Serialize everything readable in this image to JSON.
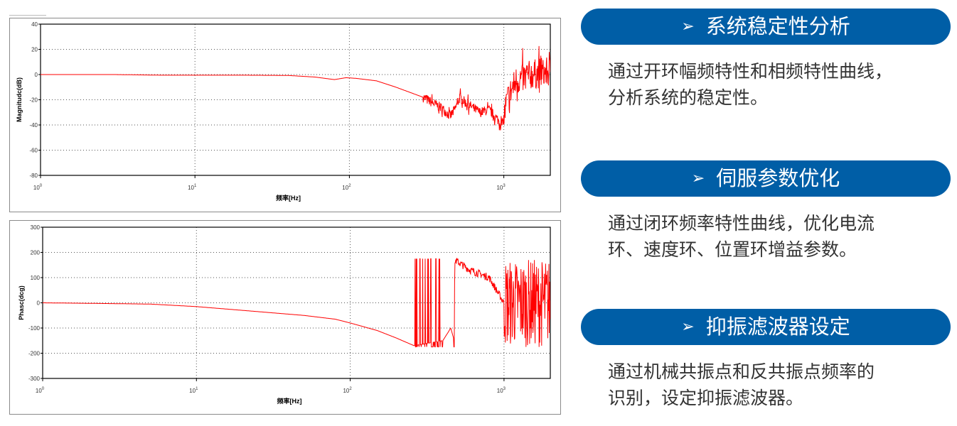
{
  "chart_data": [
    {
      "type": "line",
      "xlabel": "频率[Hz]",
      "ylabel": "Magnitudc(dB)",
      "xscale": "log",
      "xlim": [
        1,
        2000
      ],
      "ylim": [
        -80,
        40
      ],
      "xticks": [
        1,
        10,
        100,
        1000
      ],
      "xtick_labels": [
        {
          "base": "10",
          "exp": "0"
        },
        {
          "base": "10",
          "exp": "1"
        },
        {
          "base": "10",
          "exp": "2"
        },
        {
          "base": "10",
          "exp": "3"
        }
      ],
      "yticks": [
        "40",
        "20",
        "0",
        "-20",
        "-40",
        "-60",
        "-80"
      ],
      "grid": true,
      "color": "#ff0000",
      "x": [
        1,
        3,
        6,
        10,
        20,
        40,
        60,
        80,
        95,
        110,
        150,
        200,
        300,
        400,
        450,
        480,
        520,
        560,
        700,
        800,
        900,
        980,
        1050,
        1200,
        1500,
        2000
      ],
      "y": [
        0,
        0,
        -0.5,
        -0.5,
        -0.5,
        -0.7,
        -2,
        -4,
        -2.5,
        -3,
        -5,
        -10,
        -18,
        -27,
        -33,
        -28,
        -18,
        -22,
        -30,
        -28,
        -35,
        -40,
        -20,
        -5,
        0,
        2
      ],
      "noise_bands": [
        {
          "x_range": [
            300,
            1000
          ],
          "amplitude": 4
        },
        {
          "x_range": [
            1000,
            2000
          ],
          "amplitude": 12
        }
      ]
    },
    {
      "type": "line",
      "xlabel": "频率[Hz]",
      "ylabel": "Phasc(dcg)",
      "xscale": "log",
      "xlim": [
        1,
        2000
      ],
      "ylim": [
        -300,
        300
      ],
      "xticks": [
        1,
        10,
        100,
        1000
      ],
      "xtick_labels": [
        {
          "base": "10",
          "exp": "0"
        },
        {
          "base": "10",
          "exp": "1"
        },
        {
          "base": "10",
          "exp": "2"
        },
        {
          "base": "10",
          "exp": "3"
        }
      ],
      "yticks": [
        "300",
        "200",
        "100",
        "0",
        "-100",
        "-200",
        "-300"
      ],
      "grid": true,
      "color": "#ff0000",
      "x": [
        1,
        2,
        5,
        10,
        20,
        50,
        80,
        100,
        150,
        200,
        260,
        400,
        430,
        450,
        470,
        480,
        600,
        800,
        1000,
        2000
      ],
      "y": [
        0,
        -2,
        -5,
        -15,
        -30,
        -50,
        -65,
        -80,
        -110,
        -140,
        -170,
        -150,
        -120,
        -100,
        -140,
        170,
        130,
        100,
        0,
        0
      ],
      "wrap_region": {
        "x_range": [
          260,
          480
        ],
        "y_range": [
          -175,
          175
        ]
      },
      "noise_bands": [
        {
          "x_range": [
            1000,
            2000
          ],
          "y_range": [
            -175,
            175
          ]
        }
      ]
    }
  ],
  "sections": [
    {
      "arrow_icon": "➢",
      "title": "系统稳定性分析",
      "lines": [
        "通过开环幅频特性和相频特性曲线，",
        "分析系统的稳定性。"
      ]
    },
    {
      "arrow_icon": "➢",
      "title": "伺服参数优化",
      "lines": [
        "通过闭环频率特性曲线，优化电流",
        "环、速度环、位置环增益参数。"
      ]
    },
    {
      "arrow_icon": "➢",
      "title": "抑振滤波器设定",
      "lines": [
        "通过机械共振点和反共振点频率的",
        "识别，设定抑振滤波器。"
      ]
    }
  ],
  "colors": {
    "pill": "#005ea6",
    "curve": "#ff0000"
  }
}
